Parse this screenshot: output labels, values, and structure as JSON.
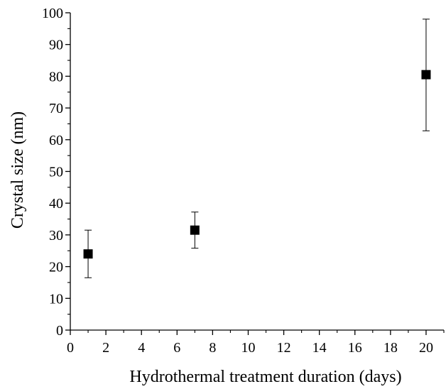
{
  "chart_data": {
    "type": "scatter",
    "title": "",
    "xlabel": "Hydrothermal treatment duration (days)",
    "ylabel": "Crystal size (nm)",
    "xlim": [
      0,
      21
    ],
    "ylim": [
      0,
      100
    ],
    "x_ticks": [
      0,
      2,
      4,
      6,
      8,
      10,
      12,
      14,
      16,
      18,
      20
    ],
    "x_minor_step": 1,
    "y_ticks": [
      0,
      10,
      20,
      30,
      40,
      50,
      60,
      70,
      80,
      90,
      100
    ],
    "y_minor_step": 5,
    "grid": false,
    "legend": "none",
    "marker": "square",
    "marker_color": "#000000",
    "points": [
      {
        "x": 1,
        "y": 24,
        "y_low": 16.5,
        "y_high": 31.5
      },
      {
        "x": 7,
        "y": 31.5,
        "y_low": 25.8,
        "y_high": 37.2
      },
      {
        "x": 20,
        "y": 80.5,
        "y_low": 62.8,
        "y_high": 98
      }
    ]
  }
}
